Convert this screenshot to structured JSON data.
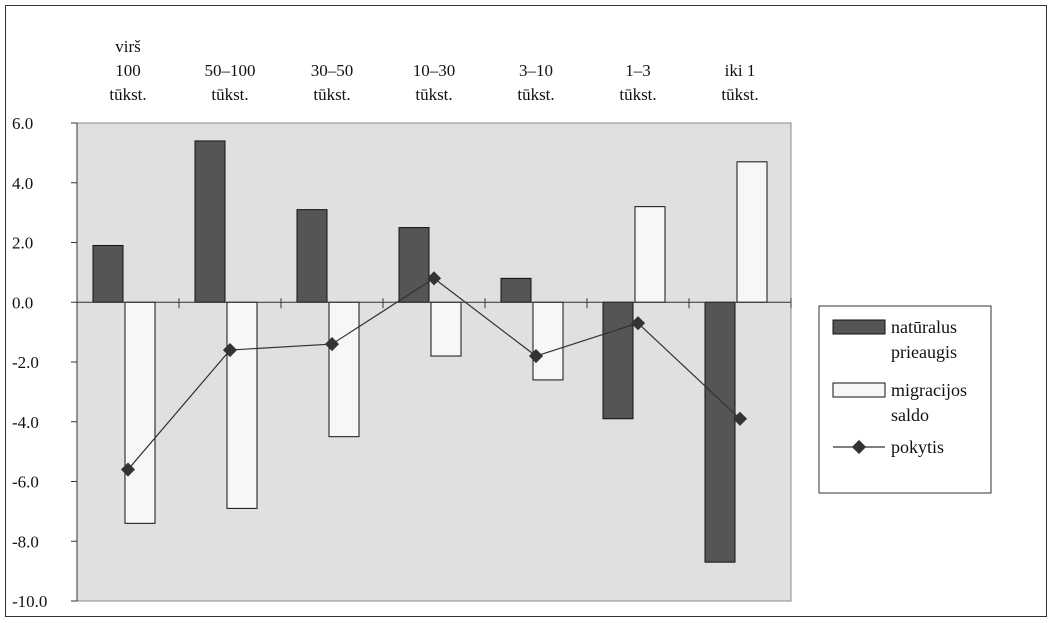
{
  "chart_data": {
    "type": "bar",
    "categories": [
      [
        "virš",
        "100",
        "tūkst."
      ],
      [
        "50–100",
        "tūkst."
      ],
      [
        "30–50",
        "tūkst."
      ],
      [
        "10–30",
        "tūkst."
      ],
      [
        "3–10",
        "tūkst."
      ],
      [
        "1–3",
        "tūkst."
      ],
      [
        "iki 1",
        "tūkst."
      ]
    ],
    "series": [
      {
        "name": "natūralus prieaugis",
        "kind": "bar",
        "color": "#555555",
        "values": [
          1.9,
          5.4,
          3.1,
          2.5,
          0.8,
          -3.9,
          -8.7
        ]
      },
      {
        "name": "migracijos saldo",
        "kind": "bar",
        "color": "#f7f7f7",
        "values": [
          -7.4,
          -6.9,
          -4.5,
          -1.8,
          -2.6,
          3.2,
          4.7
        ]
      },
      {
        "name": "pokytis",
        "kind": "line",
        "color": "#333333",
        "values": [
          -5.6,
          -1.6,
          -1.4,
          0.8,
          -1.8,
          -0.7,
          -3.9
        ]
      }
    ],
    "ylim": [
      -10,
      6
    ],
    "yticks": [
      "6.0",
      "4.0",
      "2.0",
      "0.0",
      "-2.0",
      "-4.0",
      "-6.0",
      "-8.0",
      "-10.0"
    ],
    "plot_background": "#e0e0e0",
    "legend_position": "right",
    "grid": false,
    "category_axis_position": "top"
  },
  "legend": [
    {
      "lines": [
        "natūralus",
        "prieaugis"
      ]
    },
    {
      "lines": [
        "migracijos",
        "saldo"
      ]
    },
    {
      "lines": [
        "pokytis"
      ]
    }
  ]
}
